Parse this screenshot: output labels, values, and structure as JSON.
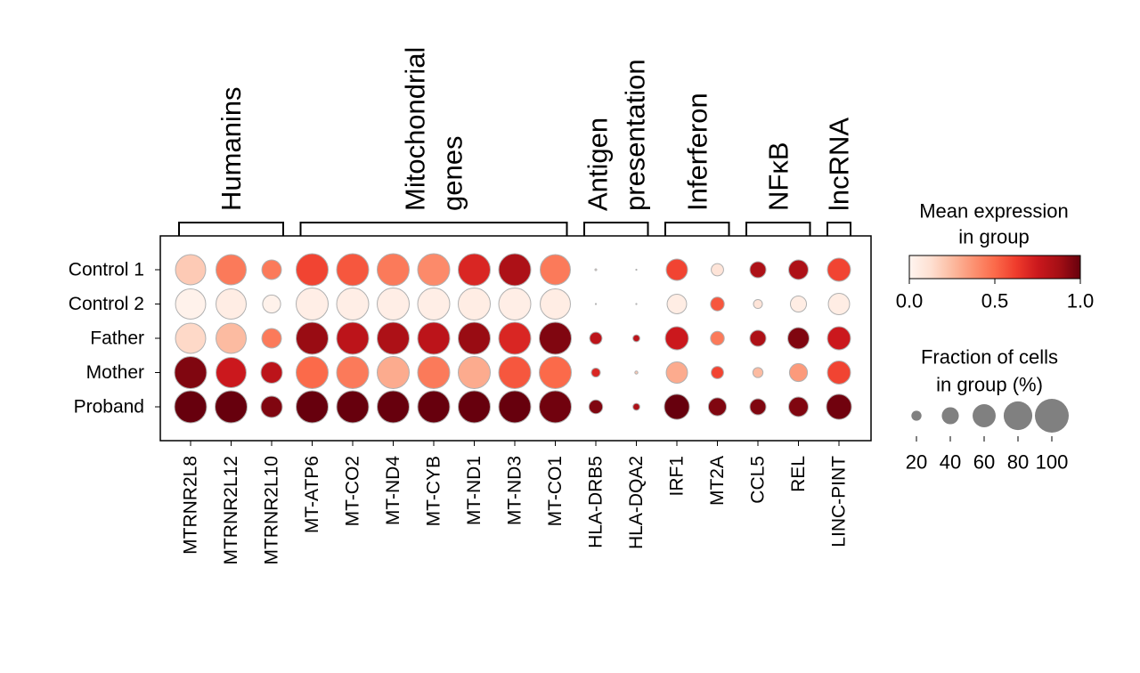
{
  "chart_data": {
    "type": "dotplot",
    "categories": [
      "MTRNR2L8",
      "MTRNR2L12",
      "MTRNR2L10",
      "MT-ATP6",
      "MT-CO2",
      "MT-ND4",
      "MT-CYB",
      "MT-ND1",
      "MT-ND3",
      "MT-CO1",
      "HLA-DRB5",
      "HLA-DQA2",
      "IRF1",
      "MT2A",
      "CCL5",
      "REL",
      "LINC-PINT"
    ],
    "gene_groups": [
      {
        "lines": [
          "Humanins"
        ],
        "categories": [
          "MTRNR2L8",
          "MTRNR2L10"
        ]
      },
      {
        "lines": [
          "Mitochondrial",
          "genes"
        ],
        "categories": [
          "MT-ATP6",
          "MT-CO1"
        ]
      },
      {
        "lines": [
          "Antigen",
          "presentation"
        ],
        "categories": [
          "HLA-DRB5",
          "HLA-DQA2"
        ]
      },
      {
        "lines": [
          "Inferferon"
        ],
        "categories": [
          "IRF1",
          "MT2A"
        ]
      },
      {
        "lines": [
          "NFκB"
        ],
        "categories": [
          "CCL5",
          "REL"
        ]
      },
      {
        "lines": [
          "lncRNA"
        ],
        "categories": [
          "LINC-PINT",
          "LINC-PINT"
        ]
      }
    ],
    "series": [
      {
        "name": "Control 1",
        "expression": [
          0.2,
          0.45,
          0.45,
          0.6,
          0.55,
          0.45,
          0.4,
          0.7,
          0.85,
          0.45,
          0.1,
          0.05,
          0.6,
          0.1,
          0.85,
          0.85,
          0.6
        ],
        "fraction": [
          86,
          86,
          48,
          93,
          93,
          93,
          93,
          93,
          93,
          86,
          2,
          1,
          54,
          26,
          37,
          48,
          60
        ]
      },
      {
        "name": "Control 2",
        "expression": [
          0.02,
          0.05,
          0.02,
          0.04,
          0.04,
          0.04,
          0.04,
          0.05,
          0.04,
          0.05,
          0.0,
          0.0,
          0.05,
          0.55,
          0.1,
          0.05,
          0.05
        ],
        "fraction": [
          86,
          86,
          43,
          93,
          93,
          93,
          93,
          93,
          93,
          86,
          1,
          1,
          48,
          30,
          17,
          37,
          54
        ]
      },
      {
        "name": "Father",
        "expression": [
          0.15,
          0.25,
          0.45,
          0.9,
          0.8,
          0.85,
          0.8,
          0.9,
          0.7,
          0.95,
          0.8,
          0.8,
          0.75,
          0.45,
          0.85,
          0.95,
          0.75
        ],
        "fraction": [
          86,
          86,
          48,
          93,
          93,
          93,
          93,
          93,
          93,
          93,
          26,
          12,
          60,
          30,
          37,
          54,
          60
        ]
      },
      {
        "name": "Mother",
        "expression": [
          0.95,
          0.75,
          0.8,
          0.5,
          0.45,
          0.3,
          0.45,
          0.3,
          0.55,
          0.5,
          0.7,
          0.2,
          0.3,
          0.6,
          0.25,
          0.35,
          0.6
        ],
        "fraction": [
          93,
          86,
          54,
          93,
          93,
          93,
          93,
          93,
          93,
          93,
          17,
          4,
          54,
          26,
          20,
          43,
          60
        ]
      },
      {
        "name": "Proband",
        "expression": [
          1.0,
          1.0,
          0.95,
          1.0,
          1.0,
          1.0,
          1.0,
          1.0,
          1.0,
          0.98,
          0.95,
          0.85,
          1.0,
          0.95,
          0.95,
          0.95,
          0.98
        ],
        "fraction": [
          93,
          93,
          54,
          93,
          93,
          93,
          93,
          93,
          93,
          93,
          30,
          12,
          67,
          43,
          37,
          48,
          67
        ]
      }
    ],
    "colormap": [
      "#fff5f0",
      "#fee0d2",
      "#fcbba1",
      "#fc9272",
      "#fb6a4a",
      "#ef3b2c",
      "#cb181d",
      "#a50f15",
      "#67000d"
    ],
    "color_legend": {
      "lines": [
        "Mean expression",
        "in group"
      ],
      "lim": [
        0,
        1
      ],
      "ticks": [
        {
          "value": 0,
          "label": "0.0"
        },
        0.5,
        {
          "value": 1,
          "label": "1.0"
        }
      ]
    },
    "size_legend": {
      "lines": [
        "Fraction of cells",
        "in group (%)"
      ],
      "ticks": [
        20,
        40,
        60,
        80,
        100
      ],
      "color": "#808080"
    }
  }
}
